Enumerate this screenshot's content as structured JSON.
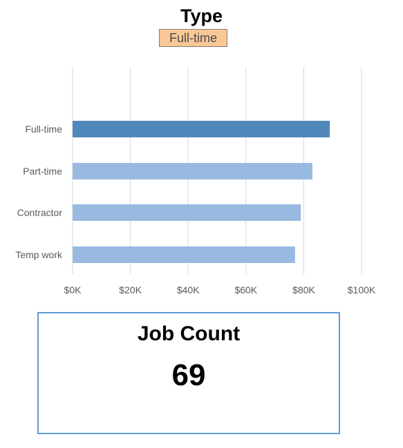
{
  "header": {
    "title": "Type",
    "selected_filter": "Full-time"
  },
  "chart_data": {
    "type": "bar",
    "orientation": "horizontal",
    "categories": [
      "Full-time",
      "Part-time",
      "Contractor",
      "Temp work"
    ],
    "values": [
      89000,
      83000,
      79000,
      77000
    ],
    "highlighted_category": "Full-time",
    "xlim": [
      0,
      100000
    ],
    "ticks": [
      0,
      20000,
      40000,
      60000,
      80000,
      100000
    ],
    "tick_labels": [
      "$0K",
      "$20K",
      "$40K",
      "$60K",
      "$80K",
      "$100K"
    ],
    "grid": true,
    "colors": {
      "highlight": "#4f87bb",
      "normal": "#98b9e0",
      "grid": "#d9d9d9",
      "text": "#595959"
    }
  },
  "kpi_card": {
    "title": "Job Count",
    "value": "69",
    "border_color": "#5b9bd5"
  },
  "colors": {
    "chip_background": "#f9c896"
  }
}
